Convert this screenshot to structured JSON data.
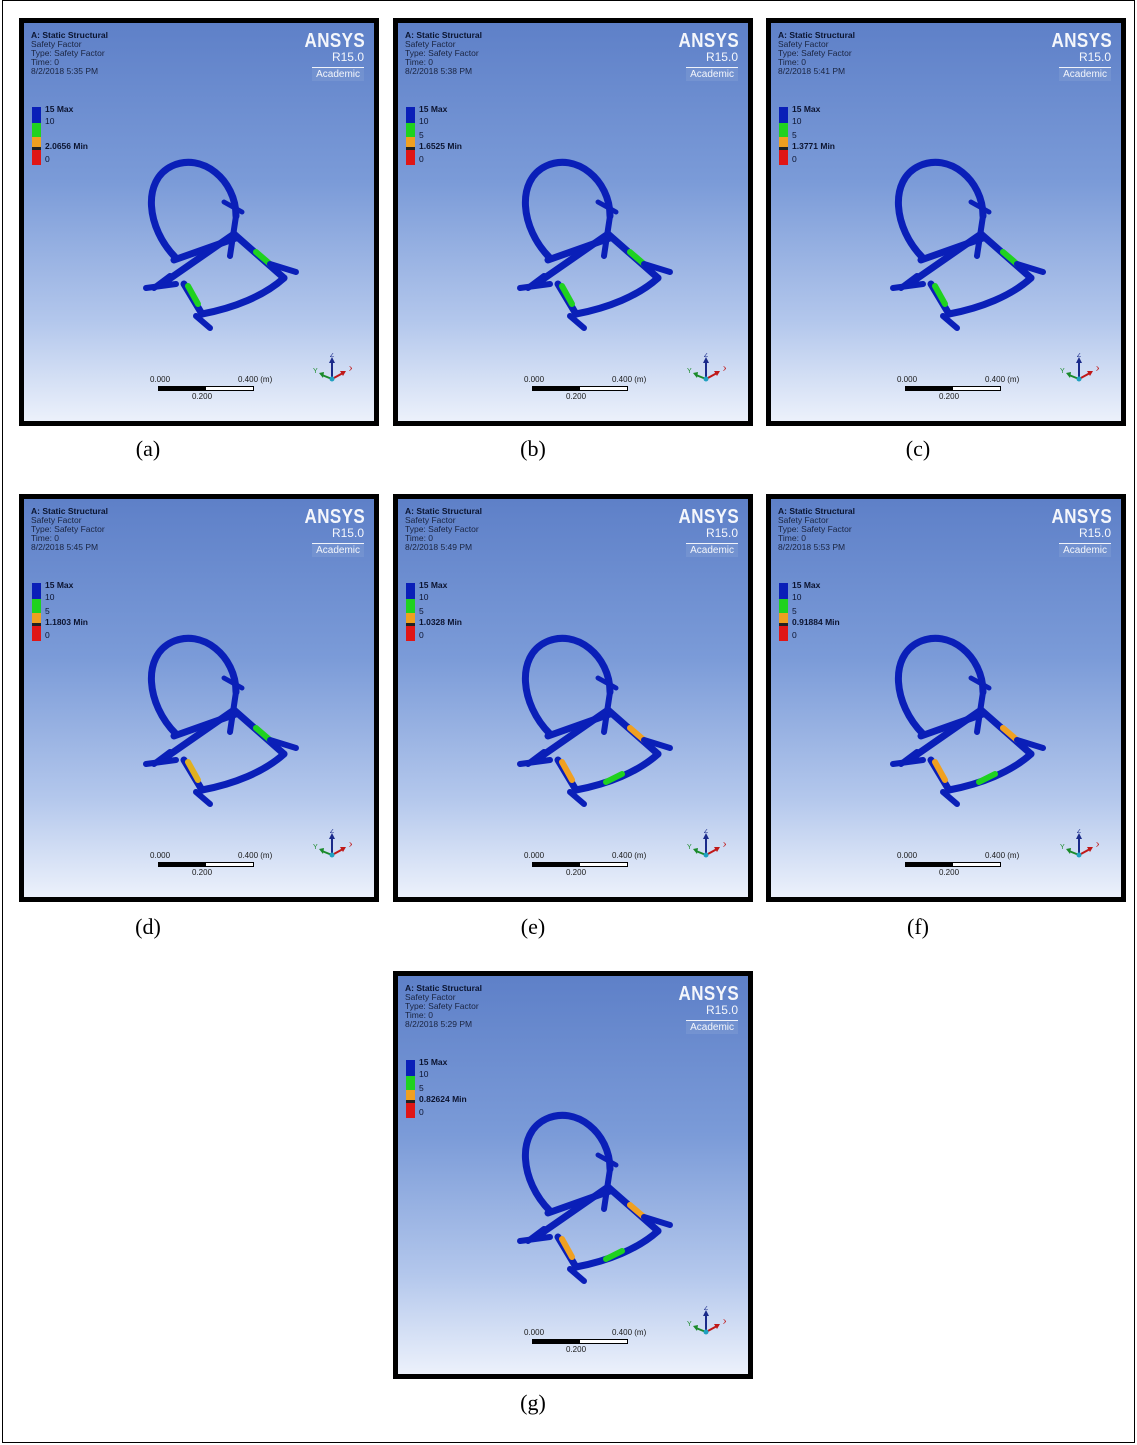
{
  "panels": [
    {
      "id": "a",
      "caption": "(a)",
      "title": "A: Static Structural",
      "line2": "Safety Factor",
      "line3": "Type: Safety Factor",
      "line4": "Time: 0",
      "date": "8/2/2018 5:35 PM",
      "leg_max": "15 Max",
      "leg_10": "10",
      "leg_5": "",
      "leg_min": "2.0656 Min",
      "leg_0": "0"
    },
    {
      "id": "b",
      "caption": "(b)",
      "title": "A: Static Structural",
      "line2": "Safety Factor",
      "line3": "Type: Safety Factor",
      "line4": "Time: 0",
      "date": "8/2/2018 5:38 PM",
      "leg_max": "15 Max",
      "leg_10": "10",
      "leg_5": "5",
      "leg_min": "1.6525 Min",
      "leg_0": "0"
    },
    {
      "id": "c",
      "caption": "(c)",
      "title": "A: Static Structural",
      "line2": "Safety Factor",
      "line3": "Type: Safety Factor",
      "line4": "Time: 0",
      "date": "8/2/2018 5:41 PM",
      "leg_max": "15 Max",
      "leg_10": "10",
      "leg_5": "5",
      "leg_min": "1.3771 Min",
      "leg_0": "0"
    },
    {
      "id": "d",
      "caption": "(d)",
      "title": "A: Static Structural",
      "line2": "Safety Factor",
      "line3": "Type: Safety Factor",
      "line4": "Time: 0",
      "date": "8/2/2018 5:45 PM",
      "leg_max": "15 Max",
      "leg_10": "10",
      "leg_5": "5",
      "leg_min": "1.1803 Min",
      "leg_0": "0"
    },
    {
      "id": "e",
      "caption": "(e)",
      "title": "A: Static Structural",
      "line2": "Safety Factor",
      "line3": "Type: Safety Factor",
      "line4": "Time: 0",
      "date": "8/2/2018 5:49 PM",
      "leg_max": "15 Max",
      "leg_10": "10",
      "leg_5": "5",
      "leg_min": "1.0328 Min",
      "leg_0": "0"
    },
    {
      "id": "f",
      "caption": "(f)",
      "title": "A: Static Structural",
      "line2": "Safety Factor",
      "line3": "Type: Safety Factor",
      "line4": "Time: 0",
      "date": "8/2/2018 5:53 PM",
      "leg_max": "15 Max",
      "leg_10": "10",
      "leg_5": "5",
      "leg_min": "0.91884 Min",
      "leg_0": "0"
    },
    {
      "id": "g",
      "caption": "(g)",
      "title": "A: Static Structural",
      "line2": "Safety Factor",
      "line3": "Type: Safety Factor",
      "line4": "Time: 0",
      "date": "8/2/2018 5:29 PM",
      "leg_max": "15 Max",
      "leg_10": "10",
      "leg_5": "5",
      "leg_min": "0.82624 Min",
      "leg_0": "0"
    }
  ],
  "brand": {
    "name": "ANSYS",
    "version": "R15.0",
    "edition": "Academic"
  },
  "scale": {
    "start": "0.000",
    "end": "0.400 (m)",
    "mid": "0.200"
  },
  "triad": {
    "x": "X",
    "y": "Y",
    "z": "Z"
  },
  "colors": {
    "blue": "#0a1fb8",
    "green": "#1fd21f",
    "orange": "#f0a020",
    "red": "#e01616"
  }
}
